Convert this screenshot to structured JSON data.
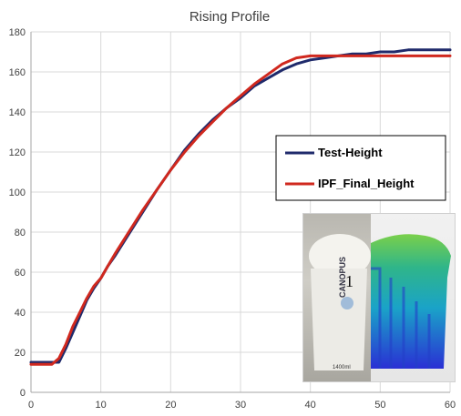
{
  "chart_data": {
    "type": "line",
    "title": "Rising Profile",
    "xlabel": "",
    "ylabel": "",
    "xlim": [
      0,
      60
    ],
    "ylim": [
      0,
      180
    ],
    "x_ticks": [
      "0",
      "10",
      "20",
      "30",
      "40",
      "50",
      "60"
    ],
    "y_ticks": [
      "0",
      "20",
      "40",
      "60",
      "80",
      "100",
      "120",
      "140",
      "160",
      "180"
    ],
    "grid": true,
    "legend_position": "right",
    "series": [
      {
        "name": "Test-Height",
        "color": "#1f2a6b",
        "points": [
          [
            0,
            15
          ],
          [
            4,
            15
          ],
          [
            5,
            22
          ],
          [
            6,
            30
          ],
          [
            7,
            38
          ],
          [
            8,
            46
          ],
          [
            9,
            52
          ],
          [
            10,
            57
          ],
          [
            11,
            63
          ],
          [
            12,
            68
          ],
          [
            14,
            79
          ],
          [
            16,
            90
          ],
          [
            18,
            101
          ],
          [
            20,
            111
          ],
          [
            22,
            121
          ],
          [
            24,
            129
          ],
          [
            26,
            136
          ],
          [
            28,
            142
          ],
          [
            30,
            147
          ],
          [
            32,
            153
          ],
          [
            34,
            157
          ],
          [
            36,
            161
          ],
          [
            38,
            164
          ],
          [
            40,
            166
          ],
          [
            42,
            167
          ],
          [
            44,
            168
          ],
          [
            46,
            169
          ],
          [
            48,
            169
          ],
          [
            50,
            170
          ],
          [
            52,
            170
          ],
          [
            54,
            171
          ],
          [
            60,
            171
          ]
        ]
      },
      {
        "name": "IPF_Final_Height",
        "color": "#d0281e",
        "points": [
          [
            0,
            14
          ],
          [
            3,
            14
          ],
          [
            4,
            17
          ],
          [
            5,
            24
          ],
          [
            6,
            33
          ],
          [
            7,
            40
          ],
          [
            8,
            47
          ],
          [
            9,
            53
          ],
          [
            10,
            57
          ],
          [
            11,
            63
          ],
          [
            12,
            69
          ],
          [
            14,
            80
          ],
          [
            16,
            91
          ],
          [
            18,
            101
          ],
          [
            20,
            111
          ],
          [
            22,
            120
          ],
          [
            24,
            128
          ],
          [
            26,
            135
          ],
          [
            28,
            142
          ],
          [
            30,
            148
          ],
          [
            32,
            154
          ],
          [
            34,
            159
          ],
          [
            36,
            164
          ],
          [
            38,
            167
          ],
          [
            40,
            168
          ],
          [
            60,
            168
          ]
        ]
      }
    ]
  },
  "inset": {
    "cup_number": "1",
    "brand": "CANOPUS",
    "volume": "1400ml"
  }
}
